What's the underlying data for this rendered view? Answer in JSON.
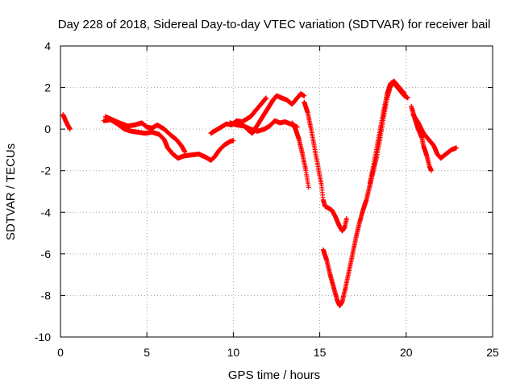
{
  "chart_data": {
    "type": "scatter",
    "title": "Day 228 of 2018, Sidereal Day-to-day VTEC variation (SDTVAR) for receiver bail",
    "xlabel": "GPS time / hours",
    "ylabel": "SDTVAR / TECUs",
    "xlim": [
      0,
      25
    ],
    "ylim": [
      -10,
      4
    ],
    "xticks": [
      0,
      5,
      10,
      15,
      20,
      25
    ],
    "yticks": [
      -10,
      -8,
      -6,
      -4,
      -2,
      0,
      2,
      4
    ],
    "grid": true,
    "marker": "plus",
    "color": "#ff0000",
    "series": [
      {
        "segments": [
          [
            [
              0.15,
              0.7
            ],
            [
              0.3,
              0.4
            ],
            [
              0.45,
              0.15
            ],
            [
              0.55,
              0.0
            ]
          ],
          [
            [
              2.5,
              0.4
            ],
            [
              2.9,
              0.45
            ],
            [
              3.3,
              0.25
            ],
            [
              3.7,
              0.0
            ],
            [
              4.1,
              -0.1
            ],
            [
              4.5,
              -0.15
            ],
            [
              4.9,
              -0.2
            ],
            [
              5.3,
              -0.15
            ],
            [
              5.7,
              -0.25
            ],
            [
              6.0,
              -0.5
            ],
            [
              6.2,
              -0.9
            ],
            [
              6.5,
              -1.2
            ],
            [
              6.8,
              -1.4
            ],
            [
              7.1,
              -1.3
            ],
            [
              7.5,
              -1.25
            ],
            [
              8.0,
              -1.2
            ],
            [
              8.4,
              -1.35
            ],
            [
              8.7,
              -1.5
            ],
            [
              8.9,
              -1.35
            ],
            [
              9.2,
              -1.0
            ],
            [
              9.5,
              -0.75
            ],
            [
              9.8,
              -0.6
            ],
            [
              10.0,
              -0.55
            ]
          ],
          [
            [
              2.6,
              0.6
            ],
            [
              3.0,
              0.45
            ],
            [
              3.4,
              0.3
            ],
            [
              3.9,
              0.15
            ],
            [
              4.3,
              0.2
            ],
            [
              4.7,
              0.3
            ],
            [
              5.0,
              0.1
            ],
            [
              5.3,
              0.05
            ],
            [
              5.6,
              0.2
            ],
            [
              6.0,
              0.0
            ],
            [
              6.4,
              -0.3
            ],
            [
              6.7,
              -0.5
            ],
            [
              7.0,
              -0.8
            ],
            [
              7.2,
              -1.1
            ]
          ],
          [
            [
              8.7,
              -0.2
            ],
            [
              9.0,
              -0.05
            ],
            [
              9.3,
              0.1
            ],
            [
              9.6,
              0.25
            ],
            [
              9.9,
              0.2
            ],
            [
              10.2,
              0.4
            ],
            [
              10.5,
              0.35
            ],
            [
              10.8,
              0.5
            ],
            [
              11.0,
              0.6
            ],
            [
              11.3,
              0.9
            ],
            [
              11.6,
              1.2
            ],
            [
              11.9,
              1.5
            ]
          ],
          [
            [
              9.8,
              0.3
            ],
            [
              10.2,
              0.2
            ],
            [
              10.6,
              0.15
            ],
            [
              11.0,
              0.0
            ],
            [
              11.4,
              -0.1
            ],
            [
              11.8,
              0.0
            ],
            [
              12.1,
              0.15
            ],
            [
              12.4,
              0.4
            ],
            [
              12.7,
              0.3
            ],
            [
              13.0,
              0.35
            ],
            [
              13.3,
              0.25
            ],
            [
              13.7,
              0.1
            ]
          ],
          [
            [
              10.8,
              0.0
            ],
            [
              11.1,
              -0.2
            ],
            [
              11.4,
              0.2
            ],
            [
              11.7,
              0.6
            ],
            [
              12.0,
              1.0
            ],
            [
              12.3,
              1.4
            ],
            [
              12.5,
              1.6
            ],
            [
              12.8,
              1.5
            ],
            [
              13.1,
              1.4
            ],
            [
              13.4,
              1.2
            ],
            [
              13.7,
              1.5
            ],
            [
              13.9,
              1.7
            ],
            [
              14.1,
              1.6
            ]
          ],
          [
            [
              13.4,
              0.3
            ],
            [
              13.6,
              0.0
            ],
            [
              13.8,
              -0.5
            ],
            [
              14.0,
              -1.2
            ],
            [
              14.2,
              -2.0
            ],
            [
              14.35,
              -2.8
            ]
          ],
          [
            [
              14.1,
              1.3
            ],
            [
              14.3,
              0.8
            ],
            [
              14.5,
              0.0
            ],
            [
              14.7,
              -0.9
            ],
            [
              14.9,
              -1.8
            ],
            [
              15.1,
              -2.7
            ],
            [
              15.2,
              -3.4
            ],
            [
              15.3,
              -3.7
            ],
            [
              15.5,
              -3.8
            ],
            [
              15.7,
              -3.9
            ],
            [
              15.9,
              -4.2
            ],
            [
              16.1,
              -4.6
            ],
            [
              16.3,
              -4.9
            ],
            [
              16.45,
              -4.7
            ],
            [
              16.55,
              -4.3
            ]
          ],
          [
            [
              15.2,
              -5.8
            ],
            [
              15.4,
              -6.3
            ],
            [
              15.6,
              -7.0
            ],
            [
              15.8,
              -7.6
            ],
            [
              16.0,
              -8.2
            ],
            [
              16.15,
              -8.5
            ],
            [
              16.3,
              -8.3
            ],
            [
              16.5,
              -7.6
            ],
            [
              16.7,
              -6.8
            ],
            [
              16.9,
              -6.0
            ],
            [
              17.1,
              -5.2
            ],
            [
              17.3,
              -4.5
            ],
            [
              17.5,
              -3.9
            ],
            [
              17.7,
              -3.4
            ],
            [
              17.9,
              -2.7
            ],
            [
              18.1,
              -2.0
            ],
            [
              18.3,
              -1.3
            ],
            [
              18.5,
              -0.4
            ],
            [
              18.7,
              0.6
            ],
            [
              18.9,
              1.5
            ],
            [
              19.1,
              2.1
            ],
            [
              19.3,
              2.2
            ],
            [
              19.5,
              2.0
            ],
            [
              19.7,
              1.8
            ],
            [
              19.9,
              1.6
            ],
            [
              20.1,
              1.5
            ]
          ],
          [
            [
              17.9,
              -2.6
            ],
            [
              18.1,
              -1.8
            ],
            [
              18.3,
              -0.9
            ],
            [
              18.5,
              0.0
            ],
            [
              18.7,
              0.9
            ],
            [
              18.9,
              1.7
            ],
            [
              19.1,
              2.2
            ],
            [
              19.3,
              2.3
            ],
            [
              19.5,
              2.1
            ],
            [
              19.7,
              1.9
            ],
            [
              19.9,
              1.7
            ]
          ],
          [
            [
              20.3,
              1.1
            ],
            [
              20.5,
              0.5
            ],
            [
              20.7,
              0.0
            ],
            [
              20.9,
              -0.4
            ],
            [
              21.0,
              -0.8
            ],
            [
              21.2,
              -1.3
            ],
            [
              21.35,
              -1.8
            ],
            [
              21.45,
              -2.0
            ]
          ],
          [
            [
              20.4,
              0.7
            ],
            [
              20.7,
              0.3
            ],
            [
              21.0,
              -0.2
            ],
            [
              21.3,
              -0.5
            ],
            [
              21.6,
              -0.8
            ],
            [
              21.8,
              -1.2
            ],
            [
              22.0,
              -1.4
            ],
            [
              22.3,
              -1.2
            ],
            [
              22.6,
              -1.0
            ],
            [
              22.9,
              -0.9
            ]
          ]
        ]
      }
    ]
  }
}
